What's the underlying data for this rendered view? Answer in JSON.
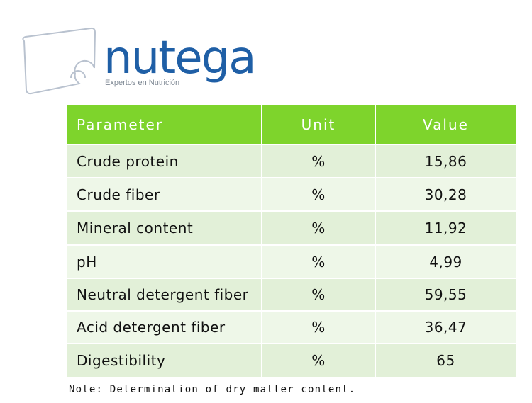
{
  "logo": {
    "name": "nutega",
    "tagline": "Expertos en Nutrición"
  },
  "table": {
    "header": [
      "Parameter",
      "Unit",
      "Value"
    ],
    "rows": [
      [
        "Crude protein",
        "%",
        "15,86"
      ],
      [
        "Crude fiber",
        "%",
        "30,28"
      ],
      [
        "Mineral content",
        "%",
        "11,92"
      ],
      [
        "pH",
        "%",
        "4,99"
      ],
      [
        "Neutral detergent fiber",
        "%",
        "59,55"
      ],
      [
        "Acid detergent fiber",
        "%",
        "36,47"
      ],
      [
        "Digestibility",
        "%",
        "65"
      ]
    ]
  },
  "note": "Note: Determination of dry matter content."
}
